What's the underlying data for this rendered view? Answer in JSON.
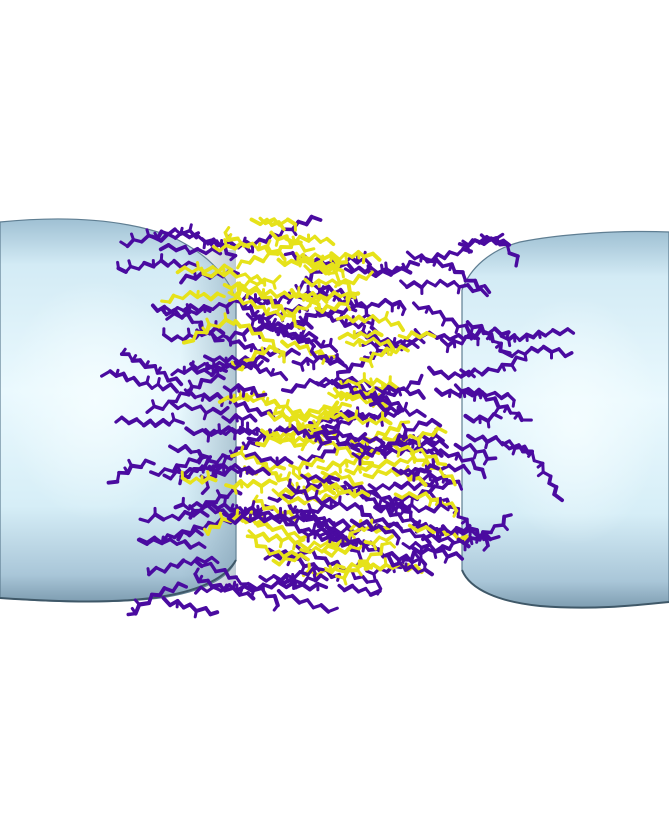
{
  "scene": {
    "background_color": "#ffffff",
    "membrane": {
      "fill_color": "#c9e3f0",
      "highlight_color": "#e8f7fd",
      "shadow_color": "#7f9fb4",
      "edge_color": "#4a6577"
    },
    "molecules": {
      "purple_color": "#4a0ba0",
      "yellow_color": "#e6e21a"
    }
  }
}
